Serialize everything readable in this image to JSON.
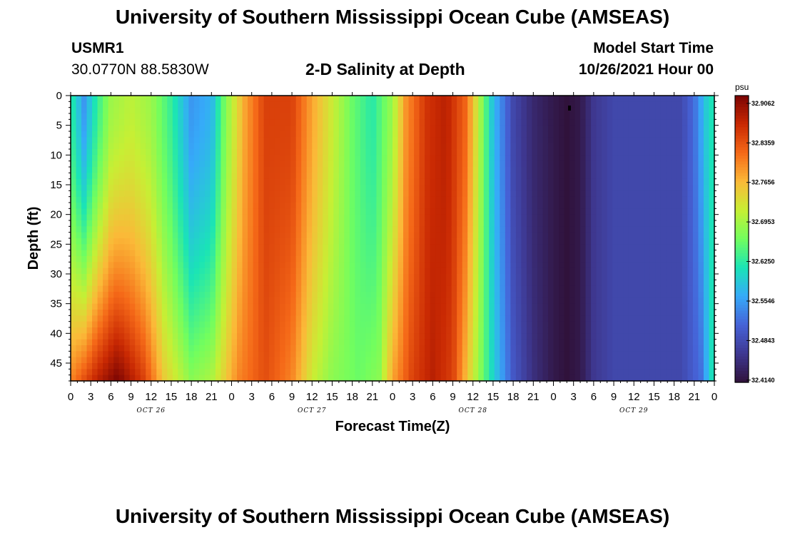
{
  "header": {
    "title": "University of Southern Mississippi Ocean Cube (AMSEAS)",
    "station_id": "USMR1",
    "station_coords": "30.0770N  88.5830W",
    "plot_title": "2-D Salinity at Depth",
    "model_start_label": "Model Start Time",
    "model_start_value": "10/26/2021 Hour 00"
  },
  "footer": {
    "title": "University of Southern Mississippi Ocean Cube (AMSEAS)"
  },
  "chart_data": {
    "type": "heatmap",
    "title": "2-D Salinity at Depth",
    "xlabel": "Forecast Time(Z)",
    "ylabel": "Depth (ft)",
    "x_tick_labels": [
      "0",
      "3",
      "6",
      "9",
      "12",
      "15",
      "18",
      "21",
      "0",
      "3",
      "6",
      "9",
      "12",
      "15",
      "18",
      "21",
      "0",
      "3",
      "6",
      "9",
      "12",
      "15",
      "18",
      "21",
      "0",
      "3",
      "6",
      "9",
      "12",
      "15",
      "18",
      "21",
      "0"
    ],
    "x_range_hours": [
      0,
      96
    ],
    "day_labels": [
      {
        "label": "OCT 26",
        "hour": 12
      },
      {
        "label": "OCT 27",
        "hour": 36
      },
      {
        "label": "OCT 28",
        "hour": 60
      },
      {
        "label": "OCT 29",
        "hour": 84
      }
    ],
    "y_tick_labels": [
      "0",
      "5",
      "10",
      "15",
      "20",
      "25",
      "30",
      "35",
      "40",
      "45"
    ],
    "y_range_ft": [
      0,
      48
    ],
    "colorbar": {
      "unit": "psu",
      "min": 32.41,
      "max": 32.92,
      "tick_labels": [
        "32.9062",
        "32.8359",
        "32.7656",
        "32.6953",
        "32.6250",
        "32.5546",
        "32.4843",
        "32.4140"
      ],
      "colors": [
        "#30123b",
        "#3e3891",
        "#4662d7",
        "#36aaf9",
        "#1ae4b6",
        "#72fe5e",
        "#c7ef34",
        "#fbb938",
        "#f56918",
        "#c92903",
        "#7a0403"
      ]
    },
    "surface_profile_psu": [
      {
        "hour": 0,
        "value": 32.63
      },
      {
        "hour": 2,
        "value": 32.55
      },
      {
        "hour": 4,
        "value": 32.63
      },
      {
        "hour": 6,
        "value": 32.69
      },
      {
        "hour": 9,
        "value": 32.71
      },
      {
        "hour": 12,
        "value": 32.69
      },
      {
        "hour": 15,
        "value": 32.63
      },
      {
        "hour": 18,
        "value": 32.55
      },
      {
        "hour": 21,
        "value": 32.57
      },
      {
        "hour": 23,
        "value": 32.67
      },
      {
        "hour": 26,
        "value": 32.78
      },
      {
        "hour": 29,
        "value": 32.85
      },
      {
        "hour": 33,
        "value": 32.85
      },
      {
        "hour": 36,
        "value": 32.78
      },
      {
        "hour": 39,
        "value": 32.72
      },
      {
        "hour": 42,
        "value": 32.66
      },
      {
        "hour": 45,
        "value": 32.62
      },
      {
        "hour": 48,
        "value": 32.69
      },
      {
        "hour": 50,
        "value": 32.79
      },
      {
        "hour": 53,
        "value": 32.86
      },
      {
        "hour": 56,
        "value": 32.88
      },
      {
        "hour": 59,
        "value": 32.82
      },
      {
        "hour": 61,
        "value": 32.7
      },
      {
        "hour": 63,
        "value": 32.58
      },
      {
        "hour": 66,
        "value": 32.48
      },
      {
        "hour": 69,
        "value": 32.44
      },
      {
        "hour": 72,
        "value": 32.42
      },
      {
        "hour": 74,
        "value": 32.41
      },
      {
        "hour": 76,
        "value": 32.42
      },
      {
        "hour": 78,
        "value": 32.46
      },
      {
        "hour": 81,
        "value": 32.48
      },
      {
        "hour": 87,
        "value": 32.48
      },
      {
        "hour": 91,
        "value": 32.48
      },
      {
        "hour": 93,
        "value": 32.52
      },
      {
        "hour": 95,
        "value": 32.6
      },
      {
        "hour": 96,
        "value": 32.62
      }
    ],
    "bottom_profile_psu": [
      {
        "hour": 0,
        "value": 32.8
      },
      {
        "hour": 4,
        "value": 32.88
      },
      {
        "hour": 7,
        "value": 32.92
      },
      {
        "hour": 11,
        "value": 32.85
      },
      {
        "hour": 14,
        "value": 32.75
      },
      {
        "hour": 18,
        "value": 32.68
      },
      {
        "hour": 21,
        "value": 32.7
      },
      {
        "hour": 25,
        "value": 32.8
      },
      {
        "hour": 29,
        "value": 32.84
      },
      {
        "hour": 33,
        "value": 32.8
      },
      {
        "hour": 36,
        "value": 32.72
      },
      {
        "hour": 39,
        "value": 32.68
      },
      {
        "hour": 43,
        "value": 32.66
      },
      {
        "hour": 46,
        "value": 32.68
      },
      {
        "hour": 48,
        "value": 32.78
      },
      {
        "hour": 51,
        "value": 32.85
      },
      {
        "hour": 54,
        "value": 32.88
      },
      {
        "hour": 57,
        "value": 32.85
      },
      {
        "hour": 60,
        "value": 32.72
      },
      {
        "hour": 63,
        "value": 32.6
      },
      {
        "hour": 66,
        "value": 32.5
      },
      {
        "hour": 69,
        "value": 32.45
      },
      {
        "hour": 72,
        "value": 32.42
      },
      {
        "hour": 74,
        "value": 32.41
      },
      {
        "hour": 76,
        "value": 32.42
      },
      {
        "hour": 78,
        "value": 32.46
      },
      {
        "hour": 81,
        "value": 32.48
      },
      {
        "hour": 91,
        "value": 32.48
      },
      {
        "hour": 94,
        "value": 32.52
      },
      {
        "hour": 96,
        "value": 32.63
      }
    ]
  }
}
